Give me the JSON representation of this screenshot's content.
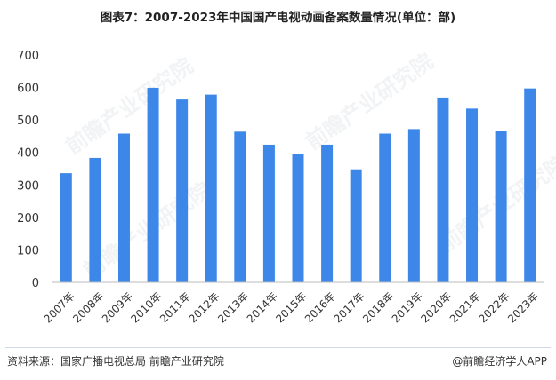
{
  "title": "图表7：2007-2023年中国国产电视动画备案数量情况(单位：部)",
  "source": "资料来源：国家广播电视总局 前瞻产业研究院",
  "brand": "@前瞻经济学人APP",
  "watermark": "前瞻产业研究院",
  "chart_data": {
    "type": "bar",
    "categories": [
      "2007年",
      "2008年",
      "2009年",
      "2010年",
      "2011年",
      "2012年",
      "2013年",
      "2014年",
      "2015年",
      "2016年",
      "2017年",
      "2018年",
      "2019年",
      "2020年",
      "2021年",
      "2022年",
      "2023年"
    ],
    "values": [
      336,
      383,
      458,
      599,
      563,
      578,
      464,
      424,
      396,
      424,
      348,
      458,
      472,
      569,
      535,
      466,
      597
    ],
    "ylim": [
      0,
      700
    ],
    "yticks": [
      0,
      100,
      200,
      300,
      400,
      500,
      600,
      700
    ],
    "bar_color": "#3c87e8",
    "grid": false,
    "legend": "none"
  }
}
